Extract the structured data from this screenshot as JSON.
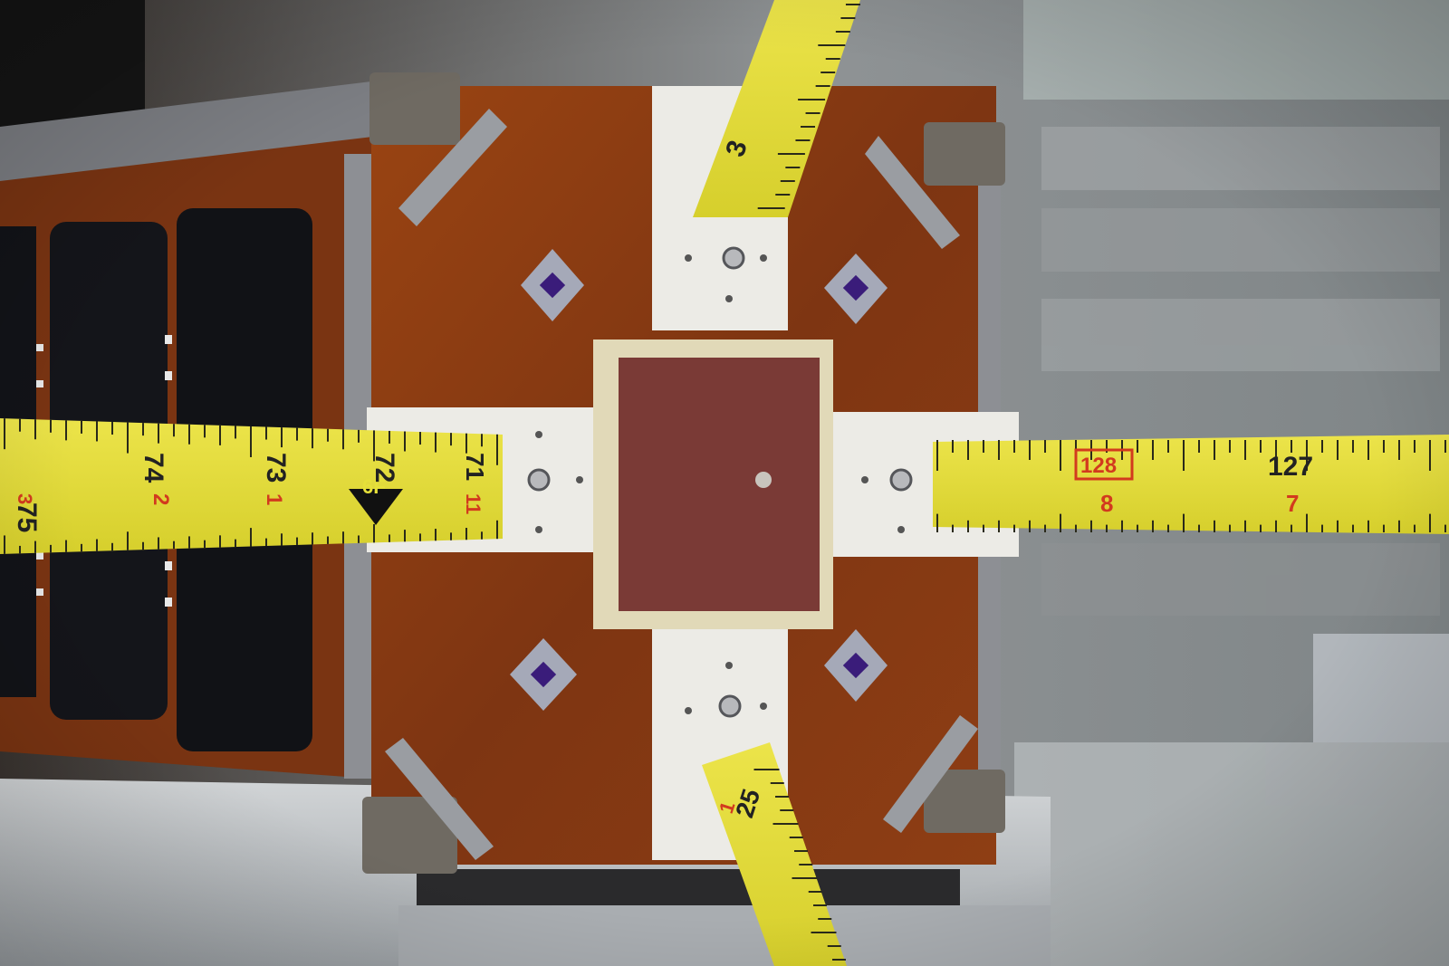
{
  "scene": {
    "subject": "cubesat",
    "colors": {
      "tape_yellow": "#e6e03a",
      "tape_red": "#d23a1e",
      "kapton": "#8a3a14",
      "frame_gray": "#8c8e92",
      "bracket_white": "#ecebe6",
      "patch_antenna": "#7a3a36",
      "base_aluminum": "#b8bcc0",
      "background": "#8a8f92"
    }
  },
  "tapes": {
    "left": {
      "numbers": [
        "75",
        "74",
        "73",
        "72",
        "71"
      ],
      "red_numbers": [
        "3",
        "2",
        "1"
      ],
      "arrow_label": "6F",
      "red_tick": "11"
    },
    "right": {
      "numbers": [
        "127"
      ],
      "red_boxed": "128",
      "red_numbers": [
        "8",
        "7"
      ]
    },
    "top": {
      "numbers": [
        "3"
      ]
    },
    "bottom": {
      "numbers": [
        "25"
      ],
      "red_numbers": [
        "1"
      ]
    }
  }
}
